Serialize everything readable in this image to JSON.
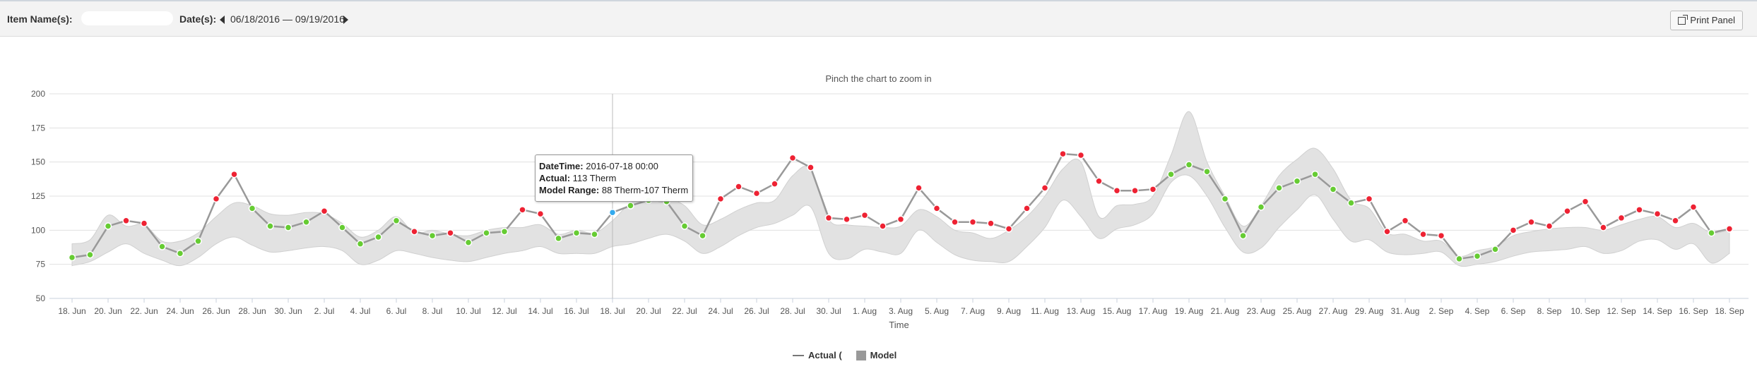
{
  "toolbar": {
    "item_label": "Item Name(s):",
    "date_label": "Date(s):",
    "date_range": "06/18/2016 — 09/19/2016",
    "print_label": "Print Panel"
  },
  "chart_subtitle": "Pinch the chart to zoom in",
  "tooltip": {
    "datetime_label": "DateTime:",
    "datetime_value": " 2016-07-18 00:00",
    "actual_label": "Actual:",
    "actual_value": " 113 Therm",
    "range_label": "Model Range:",
    "range_value": " 88 Therm-107 Therm"
  },
  "legend": {
    "actual": "Actual (",
    "model": "Model"
  },
  "chart_data": {
    "type": "line",
    "xlabel": "Time",
    "ylim": [
      50,
      200
    ],
    "y_ticks": [
      50,
      75,
      100,
      125,
      150,
      175,
      200
    ],
    "x_tick_labels": [
      "18. Jun",
      "20. Jun",
      "22. Jun",
      "24. Jun",
      "26. Jun",
      "28. Jun",
      "30. Jun",
      "2. Jul",
      "4. Jul",
      "6. Jul",
      "8. Jul",
      "10. Jul",
      "12. Jul",
      "14. Jul",
      "16. Jul",
      "18. Jul",
      "20. Jul",
      "22. Jul",
      "24. Jul",
      "26. Jul",
      "28. Jul",
      "30. Jul",
      "1. Aug",
      "3. Aug",
      "5. Aug",
      "7. Aug",
      "9. Aug",
      "11. Aug",
      "13. Aug",
      "15. Aug",
      "17. Aug",
      "19. Aug",
      "21. Aug",
      "23. Aug",
      "25. Aug",
      "27. Aug",
      "29. Aug",
      "31. Aug",
      "2. Sep",
      "4. Sep",
      "6. Sep",
      "8. Sep",
      "10. Sep",
      "12. Sep",
      "14. Sep",
      "16. Sep",
      "18. Sep"
    ],
    "start_date": "2016-06-18",
    "grid": true,
    "legend_position": "bottom-center",
    "colors": {
      "actual_line": "#999999",
      "band": "#e2e2e2",
      "band_stroke": "#d0d0d0",
      "in_range": "#66cc33",
      "out_of_range": "#ee2233",
      "highlight": "#33aaee",
      "crosshair": "#bbbbbb"
    },
    "highlight_index": 30,
    "crosshair_index": 30,
    "series": [
      {
        "actual": [
          80,
          82,
          103,
          107,
          105,
          88,
          83,
          92,
          123,
          141,
          116,
          103,
          102,
          106,
          114,
          102,
          90,
          95,
          107,
          99,
          96,
          98,
          91,
          98,
          99,
          115,
          112,
          94,
          98,
          97,
          113,
          118,
          122,
          121,
          103,
          96,
          123,
          132,
          127,
          134,
          153,
          146,
          109,
          108,
          111,
          103,
          108,
          131,
          116,
          106,
          106,
          105,
          101,
          116,
          131,
          156,
          155,
          136,
          129,
          129,
          130,
          141,
          148,
          143,
          123,
          96,
          117,
          131,
          136,
          141,
          130,
          120,
          123,
          99,
          107,
          97,
          96,
          79,
          81,
          86,
          100,
          106,
          103,
          114,
          121,
          102,
          109,
          115,
          112,
          107,
          117,
          98,
          101
        ],
        "upper": [
          90,
          93,
          111,
          103,
          104,
          92,
          92,
          98,
          110,
          120,
          118,
          112,
          111,
          113,
          112,
          105,
          95,
          100,
          110,
          98,
          100,
          97,
          96,
          100,
          102,
          102,
          104,
          97,
          100,
          98,
          107,
          120,
          125,
          124,
          118,
          104,
          108,
          115,
          120,
          122,
          140,
          145,
          108,
          104,
          103,
          102,
          103,
          115,
          110,
          100,
          98,
          94,
          100,
          110,
          125,
          145,
          150,
          110,
          118,
          119,
          125,
          155,
          187,
          150,
          125,
          103,
          118,
          140,
          152,
          160,
          145,
          122,
          116,
          98,
          97,
          92,
          92,
          81,
          85,
          88,
          96,
          99,
          101,
          102,
          102,
          100,
          104,
          108,
          110,
          102,
          105,
          98,
          100
        ],
        "lower": [
          74,
          77,
          84,
          90,
          83,
          78,
          74,
          80,
          90,
          95,
          89,
          84,
          85,
          87,
          88,
          85,
          75,
          78,
          85,
          83,
          80,
          78,
          77,
          80,
          83,
          85,
          88,
          83,
          83,
          83,
          88,
          90,
          94,
          97,
          92,
          83,
          88,
          96,
          102,
          105,
          111,
          117,
          83,
          79,
          86,
          84,
          83,
          100,
          91,
          82,
          78,
          77,
          77,
          88,
          102,
          122,
          110,
          94,
          101,
          104,
          112,
          135,
          140,
          125,
          102,
          84,
          87,
          102,
          115,
          126,
          108,
          92,
          93,
          84,
          82,
          83,
          84,
          74,
          75,
          77,
          81,
          84,
          85,
          86,
          88,
          83,
          85,
          92,
          93,
          86,
          90,
          76,
          83
        ]
      }
    ]
  }
}
